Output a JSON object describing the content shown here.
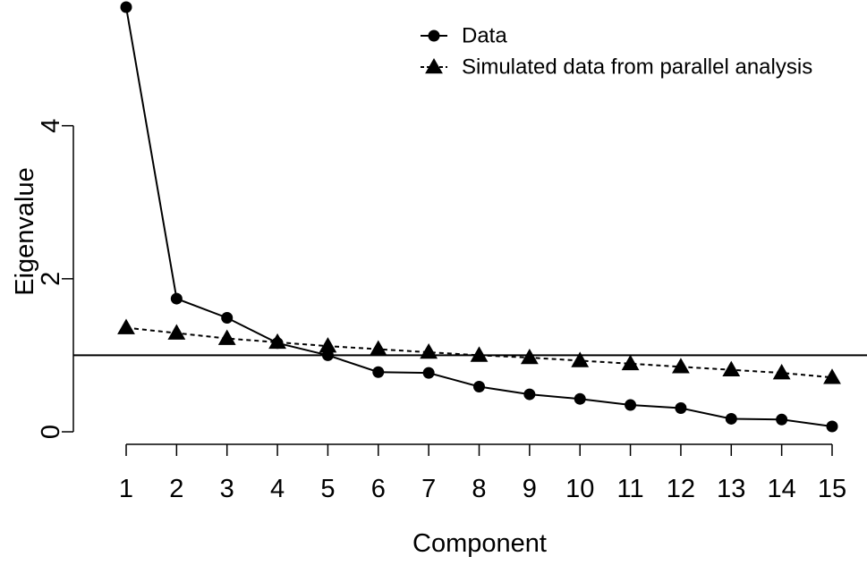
{
  "chart_data": {
    "type": "line",
    "xlabel": "Component",
    "ylabel": "Eigenvalue",
    "x": [
      1,
      2,
      3,
      4,
      5,
      6,
      7,
      8,
      9,
      10,
      11,
      12,
      13,
      14,
      15
    ],
    "x_ticks": [
      1,
      2,
      3,
      4,
      5,
      6,
      7,
      8,
      9,
      10,
      11,
      12,
      13,
      14,
      15
    ],
    "y_ticks": [
      0,
      2,
      4
    ],
    "xlim": [
      1,
      15
    ],
    "ylim": [
      0,
      5.55
    ],
    "reference_line": {
      "y": 1
    },
    "grid": false,
    "legend_position": "top-right",
    "series": [
      {
        "name": "Data",
        "marker": "circle",
        "line_style": "solid",
        "color": "#000000",
        "values": [
          5.55,
          1.74,
          1.49,
          1.16,
          1.0,
          0.78,
          0.77,
          0.59,
          0.49,
          0.43,
          0.35,
          0.31,
          0.17,
          0.16,
          0.07
        ]
      },
      {
        "name": "Simulated data from parallel analysis",
        "marker": "triangle",
        "line_style": "dashed",
        "color": "#000000",
        "values": [
          1.36,
          1.29,
          1.22,
          1.17,
          1.12,
          1.08,
          1.04,
          1.0,
          0.97,
          0.93,
          0.89,
          0.85,
          0.81,
          0.77,
          0.71
        ]
      }
    ]
  }
}
